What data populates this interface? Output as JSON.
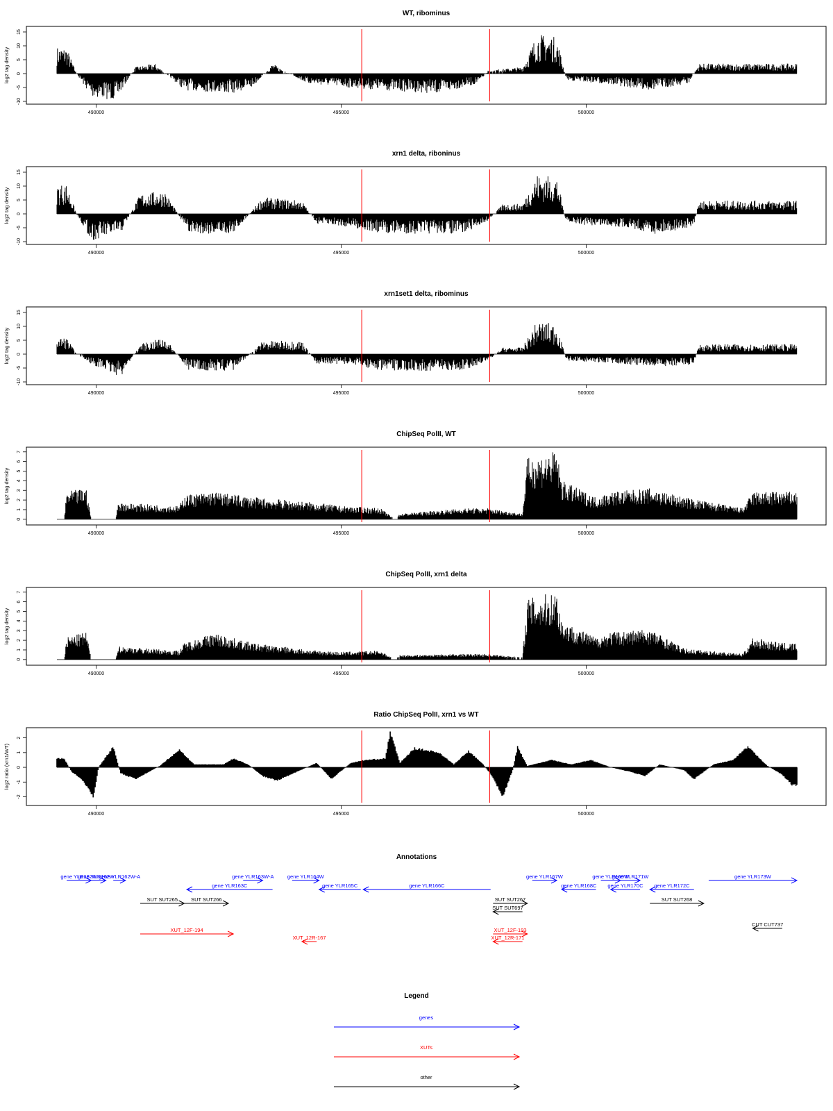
{
  "colors": {
    "highlight": "#ff0000",
    "genes": "#0000ff",
    "xuts": "#ff0000",
    "other": "#000000",
    "bars": "#000000"
  },
  "chart_data": {
    "type": "bar",
    "x_ticks": [
      490000,
      495000,
      500000
    ],
    "x_range": [
      489200,
      504300
    ],
    "highlight_lines": [
      495420,
      498030
    ],
    "panels": [
      {
        "title": "WT, ribominus",
        "ylabel": "log2 tag density",
        "yticks": [
          -10,
          -5,
          0,
          5,
          10,
          15
        ],
        "ylim": [
          -10,
          16
        ],
        "bars_style": "spiky",
        "profile": [
          [
            489400,
            8
          ],
          [
            489600,
            0
          ],
          [
            489900,
            -7
          ],
          [
            490400,
            -8
          ],
          [
            490800,
            2
          ],
          [
            491200,
            3
          ],
          [
            491800,
            -5
          ],
          [
            492800,
            -6
          ],
          [
            493200,
            -4
          ],
          [
            493600,
            3
          ],
          [
            494300,
            -3
          ],
          [
            495000,
            -4
          ],
          [
            495800,
            -5
          ],
          [
            497000,
            -6
          ],
          [
            497800,
            -3
          ],
          [
            498000,
            1
          ],
          [
            498700,
            2
          ],
          [
            499000,
            12
          ],
          [
            499400,
            11
          ],
          [
            499600,
            -2
          ],
          [
            500300,
            -3
          ],
          [
            501300,
            -5
          ],
          [
            502100,
            -3
          ],
          [
            502300,
            3
          ],
          [
            503800,
            3
          ]
        ]
      },
      {
        "title": "xrn1 delta, riboninus",
        "ylabel": "log2 tag density",
        "yticks": [
          -10,
          -5,
          0,
          5,
          10,
          15
        ],
        "ylim": [
          -10,
          16
        ],
        "bars_style": "spiky",
        "profile": [
          [
            489400,
            9
          ],
          [
            489600,
            0
          ],
          [
            489900,
            -8
          ],
          [
            490500,
            -6
          ],
          [
            490900,
            6
          ],
          [
            491400,
            7
          ],
          [
            491900,
            -6
          ],
          [
            492800,
            -6
          ],
          [
            493400,
            5
          ],
          [
            494200,
            4
          ],
          [
            494500,
            -3
          ],
          [
            495200,
            -4
          ],
          [
            495800,
            -6
          ],
          [
            497500,
            -6
          ],
          [
            498000,
            -2
          ],
          [
            498300,
            3
          ],
          [
            498700,
            3
          ],
          [
            499000,
            12
          ],
          [
            499400,
            11
          ],
          [
            499600,
            -3
          ],
          [
            500800,
            -4
          ],
          [
            501400,
            -6
          ],
          [
            502200,
            -4
          ],
          [
            502300,
            4
          ],
          [
            504000,
            4
          ]
        ]
      },
      {
        "title": "xrn1set1 delta, ribominus",
        "ylabel": "log2 tag density",
        "yticks": [
          -10,
          -5,
          0,
          5,
          10,
          15
        ],
        "ylim": [
          -10,
          16
        ],
        "bars_style": "spiky",
        "profile": [
          [
            489400,
            5
          ],
          [
            489600,
            0
          ],
          [
            489900,
            -3
          ],
          [
            490500,
            -7
          ],
          [
            490900,
            3
          ],
          [
            491400,
            5
          ],
          [
            491900,
            -5
          ],
          [
            492800,
            -5
          ],
          [
            493400,
            4
          ],
          [
            494200,
            4
          ],
          [
            494500,
            -3
          ],
          [
            495200,
            -3
          ],
          [
            495800,
            -5
          ],
          [
            497500,
            -5
          ],
          [
            498000,
            -2
          ],
          [
            498300,
            2
          ],
          [
            498700,
            2
          ],
          [
            499000,
            10
          ],
          [
            499400,
            9
          ],
          [
            499600,
            -2
          ],
          [
            500800,
            -3
          ],
          [
            501400,
            -4
          ],
          [
            502200,
            -3
          ],
          [
            502300,
            3
          ],
          [
            504000,
            3
          ]
        ]
      },
      {
        "title": "ChipSeq PolII, WT",
        "ylabel": "log2 tag density",
        "yticks": [
          0,
          1,
          2,
          3,
          4,
          5,
          6,
          7
        ],
        "ylim": [
          -0.3,
          7.2
        ],
        "bars_style": "dense",
        "profile": [
          [
            489350,
            0
          ],
          [
            489400,
            2.5
          ],
          [
            489800,
            2.8
          ],
          [
            489900,
            0
          ],
          [
            490400,
            0
          ],
          [
            490450,
            1.5
          ],
          [
            491700,
            1.2
          ],
          [
            491800,
            2.2
          ],
          [
            492400,
            2.5
          ],
          [
            493200,
            2
          ],
          [
            494500,
            1.5
          ],
          [
            495000,
            1.2
          ],
          [
            495800,
            1.0
          ],
          [
            496100,
            0
          ],
          [
            496200,
            0.5
          ],
          [
            497500,
            1.0
          ],
          [
            498000,
            1.0
          ],
          [
            498700,
            0.5
          ],
          [
            498800,
            5.5
          ],
          [
            499400,
            6.2
          ],
          [
            499500,
            3.5
          ],
          [
            500200,
            2
          ],
          [
            500500,
            2.5
          ],
          [
            501300,
            2.8
          ],
          [
            502000,
            2
          ],
          [
            503200,
            1
          ],
          [
            503400,
            2.5
          ],
          [
            504000,
            2.5
          ]
        ]
      },
      {
        "title": "ChipSeq PolII, xrn1 delta",
        "ylabel": "log2 tag density",
        "yticks": [
          0,
          1,
          2,
          3,
          4,
          5,
          6,
          7
        ],
        "ylim": [
          -0.3,
          7.2
        ],
        "bars_style": "dense",
        "profile": [
          [
            489350,
            0
          ],
          [
            489400,
            2
          ],
          [
            489800,
            2.5
          ],
          [
            489900,
            0
          ],
          [
            490400,
            0
          ],
          [
            490450,
            1.2
          ],
          [
            491700,
            0.8
          ],
          [
            491800,
            1.5
          ],
          [
            492400,
            2.4
          ],
          [
            493200,
            1.5
          ],
          [
            494500,
            0.8
          ],
          [
            495000,
            0.7
          ],
          [
            495800,
            0.8
          ],
          [
            496100,
            0
          ],
          [
            496200,
            0.4
          ],
          [
            497500,
            0.5
          ],
          [
            498000,
            0.5
          ],
          [
            498700,
            0.2
          ],
          [
            498800,
            5.5
          ],
          [
            499400,
            6.2
          ],
          [
            499500,
            3.5
          ],
          [
            500200,
            2
          ],
          [
            500500,
            2.5
          ],
          [
            501300,
            2.8
          ],
          [
            502000,
            1
          ],
          [
            503200,
            0.5
          ],
          [
            503400,
            2
          ],
          [
            504000,
            1.5
          ]
        ]
      },
      {
        "title": "Ratio ChipSeq PolII, xrn1 vs WT",
        "ylabel": "log2 ratio (xrn1/WT)",
        "yticks": [
          -2,
          -1,
          0,
          1,
          2
        ],
        "ylim": [
          -2.4,
          2.5
        ],
        "bars_style": "smooth",
        "profile": [
          [
            489350,
            0.6
          ],
          [
            489500,
            -0.3
          ],
          [
            489700,
            -0.8
          ],
          [
            489950,
            -2.0
          ],
          [
            490050,
            0
          ],
          [
            490350,
            1.4
          ],
          [
            490500,
            -0.4
          ],
          [
            490800,
            -0.8
          ],
          [
            491300,
            0.1
          ],
          [
            491700,
            1.2
          ],
          [
            492000,
            0.2
          ],
          [
            492600,
            0.2
          ],
          [
            492800,
            0.6
          ],
          [
            493100,
            0.2
          ],
          [
            493400,
            -0.6
          ],
          [
            493700,
            -0.9
          ],
          [
            494100,
            -0.3
          ],
          [
            494500,
            0.3
          ],
          [
            494800,
            -0.8
          ],
          [
            495200,
            0.3
          ],
          [
            495500,
            0.5
          ],
          [
            495900,
            0.6
          ],
          [
            496000,
            2.4
          ],
          [
            496200,
            0.3
          ],
          [
            496500,
            1.3
          ],
          [
            497000,
            1.0
          ],
          [
            497300,
            0.2
          ],
          [
            497600,
            1.1
          ],
          [
            497900,
            0.2
          ],
          [
            498100,
            -0.7
          ],
          [
            498300,
            -2.0
          ],
          [
            498500,
            -0.2
          ],
          [
            498600,
            1.4
          ],
          [
            498800,
            0.1
          ],
          [
            499300,
            0.5
          ],
          [
            499700,
            0.2
          ],
          [
            500100,
            0.5
          ],
          [
            500500,
            0.0
          ],
          [
            500900,
            -0.3
          ],
          [
            501200,
            -0.6
          ],
          [
            501500,
            0.2
          ],
          [
            502000,
            -0.2
          ],
          [
            502200,
            -0.8
          ],
          [
            502600,
            0.2
          ],
          [
            503000,
            0.5
          ],
          [
            503300,
            1.4
          ],
          [
            503700,
            0.1
          ],
          [
            504000,
            -0.5
          ],
          [
            504200,
            -1.2
          ]
        ]
      }
    ]
  },
  "annotations": {
    "title": "Annotations",
    "items": [
      {
        "label": "gene YLR162W",
        "type": "gene",
        "start": 489400,
        "end": 489900,
        "dir": "right",
        "row": 0
      },
      {
        "label": "gene YLR162W",
        "type": "gene",
        "start": 489800,
        "end": 490200,
        "dir": "right",
        "row": 0
      },
      {
        "label": "gene YLR162W-A",
        "type": "gene",
        "start": 490350,
        "end": 490600,
        "dir": "right",
        "row": 0
      },
      {
        "label": "gene YLR163W-A",
        "type": "gene",
        "start": 493000,
        "end": 493400,
        "dir": "right",
        "row": 0
      },
      {
        "label": "gene YLR163C",
        "type": "gene",
        "start": 491850,
        "end": 493600,
        "dir": "left",
        "row": 1
      },
      {
        "label": "gene YLR164W",
        "type": "gene",
        "start": 494000,
        "end": 494550,
        "dir": "right",
        "row": 0
      },
      {
        "label": "gene YLR165C",
        "type": "gene",
        "start": 494550,
        "end": 495400,
        "dir": "left",
        "row": 1
      },
      {
        "label": "gene YLR166C",
        "type": "gene",
        "start": 495450,
        "end": 498050,
        "dir": "left",
        "row": 1
      },
      {
        "label": "gene YLR167W",
        "type": "gene",
        "start": 498900,
        "end": 499400,
        "dir": "right",
        "row": 0
      },
      {
        "label": "gene YLR168C",
        "type": "gene",
        "start": 499500,
        "end": 500200,
        "dir": "left",
        "row": 1
      },
      {
        "label": "gene YLR169W",
        "type": "gene",
        "start": 500300,
        "end": 500700,
        "dir": "right",
        "row": 0
      },
      {
        "label": "gene YLR171W",
        "type": "gene",
        "start": 500700,
        "end": 501100,
        "dir": "right",
        "row": 0
      },
      {
        "label": "gene YLR170C",
        "type": "gene",
        "start": 500500,
        "end": 501100,
        "dir": "left",
        "row": 1
      },
      {
        "label": "gene YLR172C",
        "type": "gene",
        "start": 501300,
        "end": 502200,
        "dir": "left",
        "row": 1
      },
      {
        "label": "gene YLR173W",
        "type": "gene",
        "start": 502500,
        "end": 504300,
        "dir": "right",
        "row": 0
      },
      {
        "label": "SUT SUT265",
        "type": "other",
        "start": 490900,
        "end": 491800,
        "dir": "right",
        "row": 3
      },
      {
        "label": "SUT SUT266",
        "type": "other",
        "start": 491800,
        "end": 492700,
        "dir": "right",
        "row": 3
      },
      {
        "label": "SUT SUT267",
        "type": "other",
        "start": 498100,
        "end": 498800,
        "dir": "right",
        "row": 3
      },
      {
        "label": "SUT SUT697",
        "type": "other",
        "start": 498100,
        "end": 498700,
        "dir": "left",
        "row": 4
      },
      {
        "label": "SUT SUT268",
        "type": "other",
        "start": 501300,
        "end": 502400,
        "dir": "right",
        "row": 3
      },
      {
        "label": "CUT CUT737",
        "type": "other",
        "start": 503400,
        "end": 504000,
        "dir": "left",
        "row": 5
      },
      {
        "label": "XUT_12F-194",
        "type": "xut",
        "start": 490900,
        "end": 492800,
        "dir": "right",
        "row": 6
      },
      {
        "label": "XUT_12R-167",
        "type": "xut",
        "start": 494200,
        "end": 494500,
        "dir": "left",
        "row": 7
      },
      {
        "label": "XUT_12F-193",
        "type": "xut",
        "start": 498100,
        "end": 498800,
        "dir": "right",
        "row": 6
      },
      {
        "label": "XUT_12R-171",
        "type": "xut",
        "start": 498100,
        "end": 498700,
        "dir": "left",
        "row": 7
      }
    ]
  },
  "legend": {
    "title": "Legend",
    "items": [
      {
        "label": "genes",
        "type": "gene"
      },
      {
        "label": "XUTs",
        "type": "xut"
      },
      {
        "label": "other",
        "type": "other"
      }
    ]
  }
}
